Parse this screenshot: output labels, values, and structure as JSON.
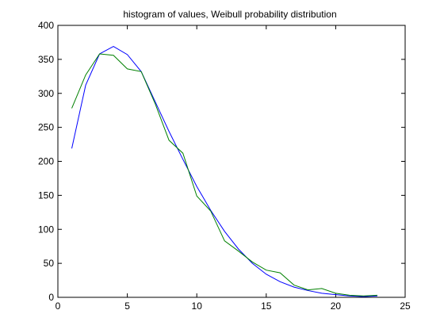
{
  "chart_data": {
    "type": "line",
    "title": "histogram of values, Weibull probability distribution",
    "xlabel": "",
    "ylabel": "",
    "xlim": [
      0,
      25
    ],
    "ylim": [
      0,
      400
    ],
    "xticks": [
      0,
      5,
      10,
      15,
      20,
      25
    ],
    "yticks": [
      0,
      50,
      100,
      150,
      200,
      250,
      300,
      350,
      400
    ],
    "grid": false,
    "legend": "none",
    "series": [
      {
        "color": "#0000ff",
        "x": [
          1,
          2,
          3,
          4,
          5,
          6,
          7,
          8,
          9,
          10,
          11,
          12,
          13,
          14,
          15,
          16,
          17,
          18,
          19,
          20,
          21,
          22,
          23
        ],
        "values": [
          219,
          312,
          358,
          369,
          357,
          332,
          288,
          244,
          203,
          163,
          128,
          97,
          71,
          50,
          34,
          23,
          15,
          10,
          6,
          4,
          2,
          1,
          2
        ]
      },
      {
        "color": "#008000",
        "x": [
          1,
          2,
          3,
          4,
          5,
          6,
          7,
          8,
          9,
          10,
          11,
          12,
          13,
          14,
          15,
          16,
          17,
          18,
          19,
          20,
          21,
          22,
          23
        ],
        "values": [
          278,
          327,
          358,
          356,
          336,
          332,
          285,
          231,
          212,
          149,
          127,
          83,
          68,
          52,
          40,
          36,
          18,
          11,
          13,
          6,
          3,
          2,
          3
        ]
      }
    ]
  }
}
